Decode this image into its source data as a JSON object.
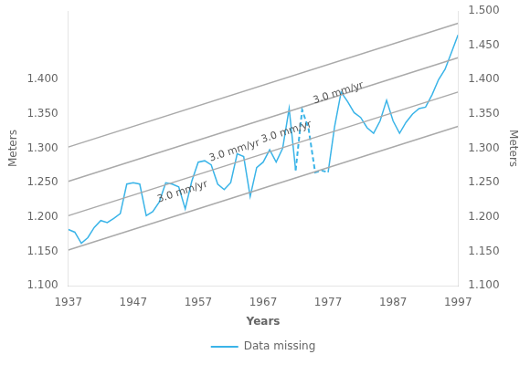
{
  "chart_data": {
    "type": "line",
    "xlabel": "Years",
    "ylabel": "Meters",
    "y2label": "Meters",
    "xlim": [
      1937,
      1997
    ],
    "ylim": [
      1.1,
      1.5
    ],
    "y2lim": [
      1.1,
      1.5
    ],
    "xticks": [
      1937,
      1947,
      1957,
      1967,
      1977,
      1987,
      1997
    ],
    "yticks": [
      {
        "value": 1.1,
        "label": "1.100"
      },
      {
        "value": 1.15,
        "label": "1.150"
      },
      {
        "value": 1.2,
        "label": "1.200"
      },
      {
        "value": 1.25,
        "label": "1.250"
      },
      {
        "value": 1.3,
        "label": "1.300"
      },
      {
        "value": 1.35,
        "label": "1.350"
      },
      {
        "value": 1.4,
        "label": "1.400"
      }
    ],
    "y2ticks": [
      {
        "value": 1.1,
        "label": "1.100"
      },
      {
        "value": 1.15,
        "label": "1.150"
      },
      {
        "value": 1.2,
        "label": "1.200"
      },
      {
        "value": 1.25,
        "label": "1.250"
      },
      {
        "value": 1.3,
        "label": "1.300"
      },
      {
        "value": 1.35,
        "label": "1.350"
      },
      {
        "value": 1.4,
        "label": "1.400"
      },
      {
        "value": 1.45,
        "label": "1.450"
      },
      {
        "value": 1.5,
        "label": "1.500"
      }
    ],
    "grid": false,
    "legend": "bottom",
    "series": [
      {
        "color": "#aaaaaa",
        "line_style": "solid",
        "x": [
          1937,
          1997
        ],
        "values": [
          1.152,
          1.332
        ]
      },
      {
        "color": "#aaaaaa",
        "line_style": "solid",
        "x": [
          1937,
          1997
        ],
        "values": [
          1.202,
          1.382
        ]
      },
      {
        "color": "#aaaaaa",
        "line_style": "solid",
        "x": [
          1937,
          1997
        ],
        "values": [
          1.252,
          1.432
        ]
      },
      {
        "color": "#aaaaaa",
        "line_style": "solid",
        "x": [
          1937,
          1997
        ],
        "values": [
          1.302,
          1.482
        ]
      },
      {
        "color": "#3ab4e8",
        "line_style": "solid",
        "x": [
          1937,
          1938,
          1939,
          1940,
          1941,
          1942,
          1943,
          1944,
          1945,
          1946,
          1947,
          1948,
          1949,
          1950,
          1951,
          1952,
          1953,
          1954,
          1955,
          1956,
          1957,
          1958,
          1959,
          1960,
          1961,
          1962,
          1963,
          1964,
          1965,
          1966,
          1967,
          1968,
          1969,
          1970,
          1971,
          1972
        ],
        "values": [
          1.182,
          1.178,
          1.162,
          1.17,
          1.185,
          1.195,
          1.192,
          1.198,
          1.205,
          1.248,
          1.25,
          1.248,
          1.202,
          1.208,
          1.222,
          1.25,
          1.248,
          1.244,
          1.212,
          1.252,
          1.28,
          1.282,
          1.276,
          1.248,
          1.24,
          1.25,
          1.292,
          1.288,
          1.23,
          1.272,
          1.28,
          1.298,
          1.28,
          1.3,
          1.358,
          1.268
        ]
      },
      {
        "name": "Data missing",
        "color": "#3ab4e8",
        "line_style": "dashed",
        "x": [
          1972,
          1973,
          1974,
          1975,
          1976,
          1977
        ],
        "values": [
          1.268,
          1.356,
          1.328,
          1.265,
          1.268,
          1.265
        ]
      },
      {
        "color": "#3ab4e8",
        "line_style": "solid",
        "x": [
          1977,
          1978,
          1979,
          1980,
          1981,
          1982,
          1983,
          1984,
          1985,
          1986,
          1987,
          1988,
          1989,
          1990,
          1991,
          1992,
          1993,
          1994,
          1995,
          1996,
          1997
        ],
        "values": [
          1.265,
          1.332,
          1.382,
          1.368,
          1.352,
          1.345,
          1.33,
          1.322,
          1.34,
          1.37,
          1.34,
          1.322,
          1.338,
          1.35,
          1.358,
          1.36,
          1.378,
          1.4,
          1.415,
          1.44,
          1.465
        ]
      }
    ],
    "annotations": [
      {
        "text": "3.0 mm/yr",
        "x": 1951,
        "y": 1.218
      },
      {
        "text": "3.0 mm/yr",
        "x": 1959,
        "y": 1.278
      },
      {
        "text": "3.0 mm/yr",
        "x": 1967,
        "y": 1.305
      },
      {
        "text": "3.0 mm/yr",
        "x": 1975,
        "y": 1.362
      }
    ]
  }
}
